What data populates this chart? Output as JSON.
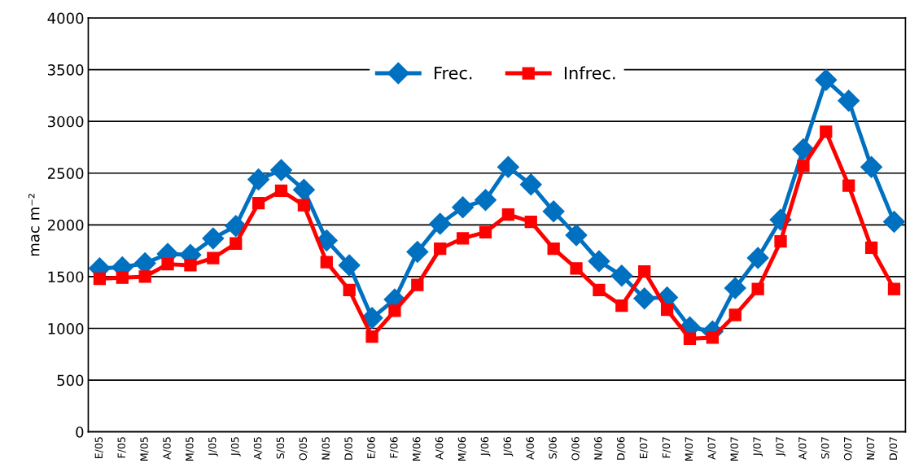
{
  "chart_data": {
    "type": "line",
    "ylabel": "mac m⁻²",
    "categories": [
      "E/05",
      "F/05",
      "M/05",
      "A/05",
      "M/05",
      "J/05",
      "J/05",
      "A/05",
      "S/05",
      "O/05",
      "N/05",
      "D/05",
      "E/06",
      "F/06",
      "M/06",
      "A/06",
      "M/06",
      "J/06",
      "J/06",
      "A/06",
      "S/06",
      "O/06",
      "N/06",
      "D/06",
      "E/07",
      "F/07",
      "M/07",
      "A/07",
      "M/07",
      "J/07",
      "J/07",
      "A/07",
      "S/07",
      "O/07",
      "N/07",
      "D/07"
    ],
    "series": [
      {
        "name": "Frec.",
        "color": "#0070c0",
        "marker": "diamond",
        "values": [
          1580,
          1590,
          1630,
          1720,
          1710,
          1870,
          1990,
          2440,
          2530,
          2340,
          1850,
          1610,
          1100,
          1280,
          1740,
          2010,
          2170,
          2240,
          2560,
          2390,
          2130,
          1900,
          1650,
          1510,
          1290,
          1300,
          1010,
          970,
          1390,
          1680,
          2050,
          2730,
          3400,
          3200,
          2560,
          2030
        ]
      },
      {
        "name": "Infrec.",
        "color": "#ff0000",
        "marker": "square",
        "values": [
          1480,
          1490,
          1500,
          1620,
          1610,
          1680,
          1820,
          2210,
          2330,
          2190,
          1640,
          1370,
          920,
          1170,
          1420,
          1770,
          1870,
          1930,
          2100,
          2030,
          1770,
          1580,
          1370,
          1220,
          1550,
          1180,
          900,
          910,
          1130,
          1380,
          1840,
          2570,
          2900,
          2380,
          1780,
          1380
        ]
      }
    ],
    "ylim": [
      0,
      4000
    ],
    "yticks": [
      0,
      500,
      1000,
      1500,
      2000,
      2500,
      3000,
      3500,
      4000
    ],
    "grid": "y",
    "legend": "top",
    "line_style": "solid"
  }
}
